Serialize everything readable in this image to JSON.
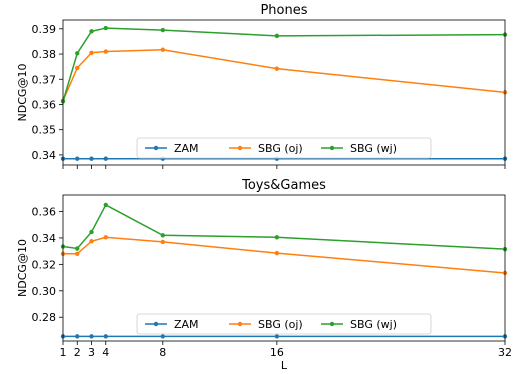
{
  "chart_data": [
    {
      "type": "line",
      "title": "Phones",
      "xlabel": "",
      "ylabel": "NDCG@10",
      "x": [
        1,
        2,
        3,
        4,
        8,
        16,
        32
      ],
      "xlim": [
        1,
        32
      ],
      "ylim": [
        0.336,
        0.3935
      ],
      "yticks": [
        "0.34",
        "0.35",
        "0.36",
        "0.37",
        "0.38",
        "0.39"
      ],
      "xticks": [],
      "legend": {
        "placement": "lower center",
        "ncol": 3
      },
      "series": [
        {
          "name": "ZAM",
          "color": "#1f77b4",
          "values": [
            0.3385,
            0.3385,
            0.3385,
            0.3385,
            0.3385,
            0.3385,
            0.3385
          ]
        },
        {
          "name": "SBG (oj)",
          "color": "#ff7f0e",
          "values": [
            0.3615,
            0.3745,
            0.3805,
            0.381,
            0.3817,
            0.3742,
            0.3648
          ]
        },
        {
          "name": "SBG (wj)",
          "color": "#2ca02c",
          "values": [
            0.3612,
            0.3803,
            0.389,
            0.3903,
            0.3895,
            0.3872,
            0.3877
          ]
        }
      ]
    },
    {
      "type": "line",
      "title": "Toys&Games",
      "xlabel": "L",
      "ylabel": "NDCG@10",
      "x": [
        1,
        2,
        3,
        4,
        8,
        16,
        32
      ],
      "xlim": [
        1,
        32
      ],
      "ylim": [
        0.262,
        0.3725
      ],
      "yticks": [
        "0.28",
        "0.30",
        "0.32",
        "0.34",
        "0.36"
      ],
      "xticks": [
        "1",
        "2",
        "3",
        "4",
        "8",
        "16",
        "32"
      ],
      "legend": {
        "placement": "lower center",
        "ncol": 3
      },
      "series": [
        {
          "name": "ZAM",
          "color": "#1f77b4",
          "values": [
            0.2655,
            0.2655,
            0.2655,
            0.2655,
            0.2655,
            0.2655,
            0.2655
          ]
        },
        {
          "name": "SBG (oj)",
          "color": "#ff7f0e",
          "values": [
            0.328,
            0.328,
            0.3375,
            0.3405,
            0.337,
            0.3285,
            0.3135
          ]
        },
        {
          "name": "SBG (wj)",
          "color": "#2ca02c",
          "values": [
            0.3335,
            0.332,
            0.3445,
            0.365,
            0.342,
            0.3405,
            0.3315
          ]
        }
      ]
    }
  ]
}
